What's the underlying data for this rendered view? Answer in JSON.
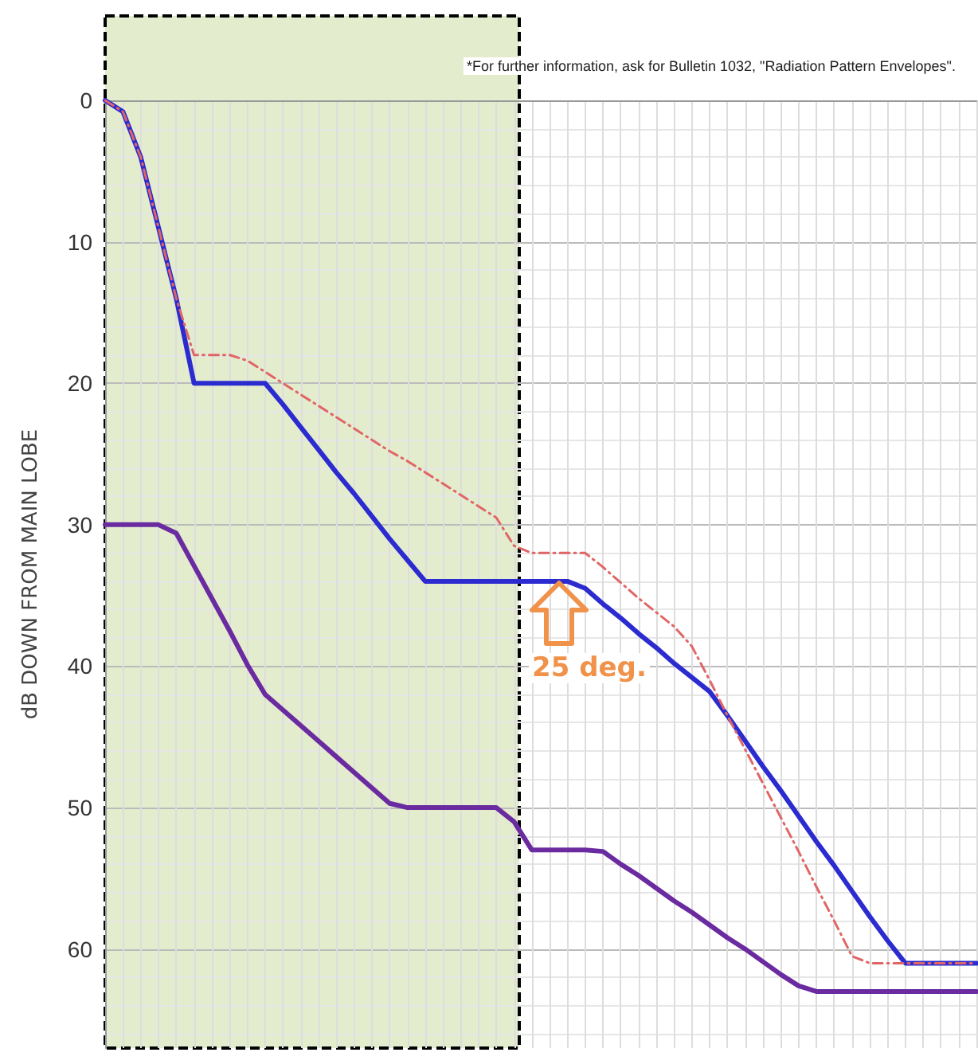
{
  "chart_data": {
    "type": "line",
    "ylabel": "dB DOWN FROM MAIN LOBE",
    "categories": [
      null,
      null,
      null,
      null,
      null,
      null,
      null,
      null,
      null,
      null,
      null,
      null,
      null,
      null,
      null,
      null,
      null,
      null,
      null,
      null,
      null,
      null,
      null,
      null,
      null,
      null,
      null,
      null,
      null,
      null,
      null,
      null,
      null,
      null,
      null,
      null,
      null,
      null,
      null,
      null,
      null,
      null,
      null,
      null,
      null,
      null,
      null,
      null,
      null,
      null
    ],
    "series": [
      {
        "color": "#e06666",
        "line_style": "dashed",
        "values": [
          0,
          0.8,
          4,
          9,
          14,
          18,
          18,
          18,
          18.4,
          19.2,
          20,
          20.8,
          21.6,
          22.4,
          23.2,
          24,
          24.8,
          25.5,
          26.3,
          27.1,
          27.9,
          28.7,
          29.5,
          31.5,
          32,
          32,
          32,
          32,
          33,
          34.1,
          35.2,
          36.2,
          37.2,
          38.6,
          41,
          43.5,
          45.9,
          48.3,
          50.7,
          53.1,
          55.6,
          58,
          60.5,
          61,
          61,
          61,
          61,
          61,
          61,
          61
        ]
      },
      {
        "color": "#2b2bd0",
        "line_style": "solid",
        "values": [
          0,
          0.8,
          4,
          9,
          14,
          20,
          20,
          20,
          20,
          20,
          21.5,
          23.1,
          24.7,
          26.3,
          27.8,
          29.4,
          31,
          32.5,
          34,
          34,
          34,
          34,
          34,
          34,
          34,
          34,
          34,
          34.5,
          35.6,
          36.6,
          37.7,
          38.7,
          39.8,
          40.8,
          41.8,
          43.5,
          45.3,
          47.1,
          48.8,
          50.6,
          52.4,
          54.1,
          55.9,
          57.7,
          59.4,
          61,
          61,
          61,
          61,
          61
        ]
      },
      {
        "color": "#6a2aa0",
        "line_style": "solid",
        "values": [
          30,
          30,
          30,
          30,
          30.6,
          32.9,
          35.2,
          37.5,
          39.9,
          42,
          43.1,
          44.2,
          45.3,
          46.4,
          47.5,
          48.6,
          49.7,
          50,
          50,
          50,
          50,
          50,
          50,
          51,
          53,
          53,
          53,
          53,
          53.1,
          54,
          54.8,
          55.7,
          56.6,
          57.4,
          58.3,
          59.2,
          60,
          60.9,
          61.8,
          62.6,
          63,
          63,
          63,
          63,
          63,
          63,
          63,
          63,
          63,
          63
        ]
      }
    ],
    "ylim": [
      67,
      0
    ],
    "yticks": [
      0,
      10,
      20,
      30,
      40,
      50,
      60
    ],
    "tick_labels": "y",
    "grid": true,
    "marker": "none",
    "annotations": [
      "25 deg.",
      "*For further information, ask for Bulletin 1032, \"Radiation Pattern Envelopes\"."
    ]
  }
}
